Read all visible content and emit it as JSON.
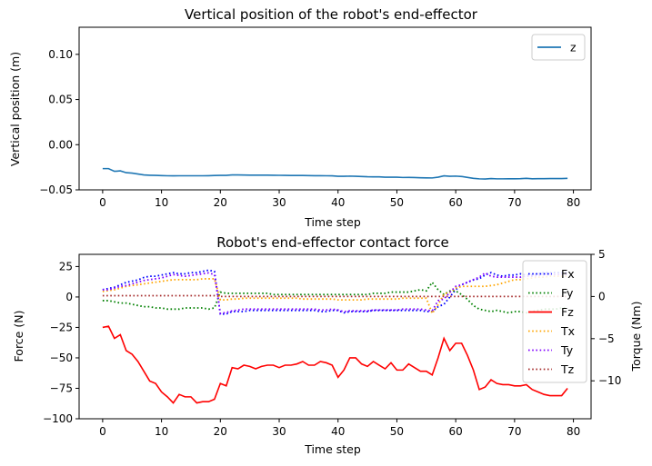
{
  "chart_data": [
    {
      "type": "line",
      "title": "Vertical position of the robot's end-effector",
      "xlabel": "Time step",
      "ylabel": "Vertical position (m)",
      "xlim": [
        -4,
        83
      ],
      "ylim": [
        -0.05,
        0.13
      ],
      "xticks": [
        "0",
        "10",
        "20",
        "30",
        "40",
        "50",
        "60",
        "70",
        "80"
      ],
      "yticks": [
        "−0.05",
        "0.00",
        "0.05",
        "0.10"
      ],
      "legend_position": "top-right",
      "series": [
        {
          "name": "z",
          "color": "#1f77b4",
          "style": "solid",
          "values": [
            -0.0265,
            -0.0265,
            -0.0295,
            -0.029,
            -0.031,
            -0.0315,
            -0.0325,
            -0.0335,
            -0.0338,
            -0.034,
            -0.0342,
            -0.0344,
            -0.0345,
            -0.0344,
            -0.0344,
            -0.0344,
            -0.0344,
            -0.0344,
            -0.0343,
            -0.0341,
            -0.034,
            -0.034,
            -0.0335,
            -0.0335,
            -0.0336,
            -0.0337,
            -0.0337,
            -0.0337,
            -0.0337,
            -0.0338,
            -0.0339,
            -0.034,
            -0.0341,
            -0.0341,
            -0.0341,
            -0.0342,
            -0.0343,
            -0.0343,
            -0.0344,
            -0.0345,
            -0.035,
            -0.035,
            -0.0348,
            -0.035,
            -0.0352,
            -0.0355,
            -0.0356,
            -0.0356,
            -0.036,
            -0.036,
            -0.036,
            -0.0363,
            -0.0362,
            -0.0364,
            -0.0366,
            -0.0367,
            -0.0368,
            -0.036,
            -0.0345,
            -0.035,
            -0.0348,
            -0.0352,
            -0.0362,
            -0.0372,
            -0.0378,
            -0.038,
            -0.0375,
            -0.0378,
            -0.0378,
            -0.0377,
            -0.0377,
            -0.0376,
            -0.0372,
            -0.0377,
            -0.0376,
            -0.0376,
            -0.0375,
            -0.0375,
            -0.0375,
            -0.0372
          ]
        }
      ]
    },
    {
      "type": "line",
      "title": "Robot's end-effector contact force",
      "xlabel": "Time step",
      "ylabel": "Force (N)",
      "y2label": "Torque (Nm)",
      "xlim": [
        -4,
        83
      ],
      "ylim": [
        -100,
        35
      ],
      "y2lim": [
        -14.5,
        5
      ],
      "xticks": [
        "0",
        "10",
        "20",
        "30",
        "40",
        "50",
        "60",
        "70",
        "80"
      ],
      "yticks": [
        "−100",
        "−75",
        "−50",
        "−25",
        "0",
        "25"
      ],
      "y2ticks": [
        "−10",
        "−5",
        "0",
        "5"
      ],
      "legend_position": "right",
      "series": [
        {
          "name": "Fx",
          "axis": "left",
          "color": "#0000ff",
          "style": "dotted",
          "values": [
            6,
            7,
            8,
            10,
            12,
            13,
            14,
            16,
            17,
            17,
            18,
            19,
            20,
            19,
            19,
            20,
            20,
            21,
            22,
            21,
            -14,
            -14,
            -12,
            -12,
            -12,
            -11,
            -11,
            -11,
            -11,
            -11,
            -11,
            -11,
            -11,
            -11,
            -11,
            -11,
            -11,
            -12,
            -12,
            -11,
            -11,
            -13,
            -12,
            -12,
            -12,
            -12,
            -11,
            -11,
            -11,
            -11,
            -11,
            -11,
            -11,
            -11,
            -11,
            -12,
            -12,
            -8,
            -6,
            0,
            6,
            10,
            12,
            14,
            15,
            18,
            20,
            18,
            17,
            18,
            18,
            19,
            18,
            18,
            19,
            20,
            20,
            20,
            20,
            20
          ]
        },
        {
          "name": "Fy",
          "axis": "left",
          "color": "#008000",
          "style": "dotted",
          "values": [
            -3,
            -3,
            -4,
            -5,
            -5,
            -6,
            -7,
            -8,
            -8,
            -9,
            -9,
            -10,
            -10,
            -10,
            -9,
            -9,
            -9,
            -9,
            -10,
            -9,
            4,
            3,
            3,
            3,
            3,
            3,
            3,
            3,
            3,
            2,
            2,
            2,
            2,
            2,
            2,
            2,
            2,
            2,
            2,
            2,
            2,
            2,
            2,
            2,
            2,
            2,
            3,
            3,
            3,
            4,
            4,
            4,
            4,
            5,
            6,
            5,
            12,
            6,
            2,
            5,
            5,
            2,
            -2,
            -7,
            -10,
            -11,
            -12,
            -11,
            -12,
            -13,
            -12,
            -12,
            -13,
            -12,
            -11,
            -10,
            -10,
            -10,
            -9,
            -9
          ]
        },
        {
          "name": "Fz",
          "axis": "left",
          "color": "#ff0000",
          "style": "solid",
          "values": [
            -25,
            -24,
            -34,
            -31,
            -44,
            -47,
            -53,
            -61,
            -69,
            -71,
            -78,
            -82,
            -87,
            -80,
            -82,
            -82,
            -87,
            -86,
            -86,
            -84,
            -71,
            -73,
            -58,
            -59,
            -56,
            -57,
            -59,
            -57,
            -56,
            -56,
            -58,
            -56,
            -56,
            -55,
            -53,
            -56,
            -56,
            -53,
            -54,
            -56,
            -66,
            -60,
            -50,
            -50,
            -55,
            -57,
            -53,
            -56,
            -59,
            -54,
            -60,
            -60,
            -55,
            -58,
            -61,
            -61,
            -64,
            -50,
            -34,
            -44,
            -38,
            -38,
            -48,
            -60,
            -76,
            -74,
            -68,
            -71,
            -72,
            -72,
            -73,
            -73,
            -72,
            -76,
            -78,
            -80,
            -81,
            -81,
            -81,
            -75
          ]
        },
        {
          "name": "Tx",
          "axis": "right",
          "color": "#ffa500",
          "style": "dotted",
          "values": [
            0.6,
            0.7,
            0.8,
            1.0,
            1.2,
            1.3,
            1.4,
            1.5,
            1.6,
            1.7,
            1.8,
            1.9,
            2.0,
            2.0,
            2.0,
            2.0,
            2.0,
            2.1,
            2.1,
            2.1,
            -0.4,
            -0.4,
            -0.3,
            -0.3,
            -0.2,
            -0.2,
            -0.2,
            -0.2,
            -0.2,
            -0.2,
            -0.2,
            -0.2,
            -0.2,
            -0.2,
            -0.3,
            -0.3,
            -0.3,
            -0.3,
            -0.3,
            -0.3,
            -0.4,
            -0.4,
            -0.4,
            -0.4,
            -0.4,
            -0.3,
            -0.3,
            -0.3,
            -0.3,
            -0.3,
            -0.3,
            -0.2,
            -0.2,
            -0.2,
            -0.2,
            -0.2,
            -2.0,
            -1.0,
            0.3,
            0.5,
            1.0,
            1.2,
            1.2,
            1.2,
            1.2,
            1.2,
            1.3,
            1.4,
            1.6,
            1.8,
            2.0,
            2.0,
            2.1,
            2.2,
            2.3,
            2.3,
            2.4,
            2.4,
            2.4,
            2.4
          ]
        },
        {
          "name": "Ty",
          "axis": "right",
          "color": "#8000ff",
          "style": "dotted",
          "values": [
            0.8,
            0.8,
            1.0,
            1.2,
            1.3,
            1.5,
            1.7,
            1.9,
            2.0,
            2.1,
            2.2,
            2.4,
            2.6,
            2.5,
            2.4,
            2.5,
            2.6,
            2.7,
            2.8,
            2.6,
            -2.0,
            -1.9,
            -1.7,
            -1.6,
            -1.5,
            -1.5,
            -1.5,
            -1.5,
            -1.5,
            -1.5,
            -1.5,
            -1.5,
            -1.5,
            -1.5,
            -1.5,
            -1.5,
            -1.5,
            -1.6,
            -1.6,
            -1.5,
            -1.6,
            -1.8,
            -1.7,
            -1.7,
            -1.7,
            -1.7,
            -1.6,
            -1.6,
            -1.6,
            -1.6,
            -1.6,
            -1.5,
            -1.5,
            -1.5,
            -1.5,
            -1.6,
            -1.7,
            -0.5,
            -0.3,
            0.5,
            1.2,
            1.4,
            1.7,
            2.0,
            2.3,
            2.8,
            2.4,
            2.3,
            2.3,
            2.3,
            2.3,
            2.3,
            2.4,
            2.4,
            2.5,
            2.6,
            2.6,
            2.6,
            2.6,
            2.6
          ]
        },
        {
          "name": "Tz",
          "axis": "right",
          "color": "#a52a2a",
          "style": "dotted",
          "values": [
            0.1,
            0.1,
            0.1,
            0.1,
            0.1,
            0.1,
            0.1,
            0.1,
            0.1,
            0.1,
            0.1,
            0.1,
            0.1,
            0.1,
            0.1,
            0.1,
            0.1,
            0.1,
            0.1,
            0.1,
            0.0,
            0.0,
            0.0,
            0.0,
            0.0,
            0.0,
            0.0,
            0.0,
            0.0,
            0.0,
            0.0,
            0.0,
            0.0,
            0.0,
            0.0,
            0.0,
            0.0,
            0.0,
            0.0,
            0.0,
            0.0,
            0.0,
            0.0,
            0.0,
            0.0,
            0.0,
            0.0,
            0.0,
            0.0,
            0.0,
            0.0,
            0.0,
            0.0,
            0.0,
            0.0,
            0.0,
            0.0,
            0.0,
            0.0,
            0.0,
            0.0,
            0.0,
            0.0,
            0.0,
            0.0,
            0.0,
            0.0,
            0.0,
            0.0,
            0.0,
            0.0,
            0.0,
            0.0,
            0.0,
            0.0,
            0.0,
            0.0,
            0.0,
            0.0,
            0.0
          ]
        }
      ]
    }
  ]
}
